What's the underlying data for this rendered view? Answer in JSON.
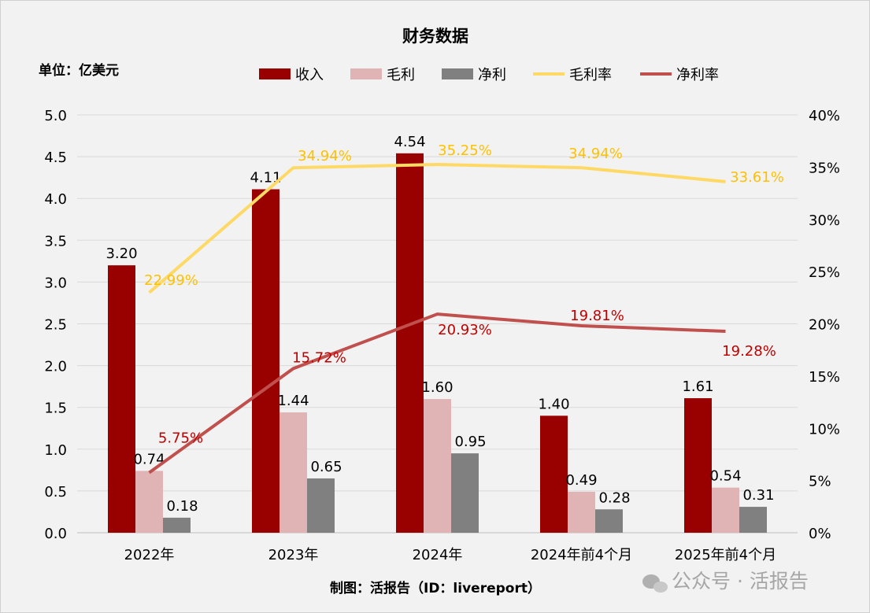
{
  "chart_data": {
    "type": "bar+line",
    "title": "财务数据",
    "unit_label": "单位：亿美元",
    "categories": [
      "2022年",
      "2023年",
      "2024年",
      "2024年前4个月",
      "2025年前4个月"
    ],
    "left_axis": {
      "ylim": [
        0,
        5
      ],
      "ticks": [
        "0.0",
        "0.5",
        "1.0",
        "1.5",
        "2.0",
        "2.5",
        "3.0",
        "3.5",
        "4.0",
        "4.5",
        "5.0"
      ]
    },
    "right_axis": {
      "ylim": [
        0,
        40
      ],
      "ticks": [
        "0%",
        "5%",
        "10%",
        "15%",
        "20%",
        "25%",
        "30%",
        "35%",
        "40%"
      ]
    },
    "grid": true,
    "legend": "top",
    "bar_series": [
      {
        "name": "收入",
        "values": [
          3.2,
          4.11,
          4.54,
          1.4,
          1.61
        ],
        "labels": [
          "3.20",
          "4.11",
          "4.54",
          "1.40",
          "1.61"
        ],
        "color": "#990000"
      },
      {
        "name": "毛利",
        "values": [
          0.74,
          1.44,
          1.6,
          0.49,
          0.54
        ],
        "labels": [
          "0.74",
          "1.44",
          "1.60",
          "0.49",
          "0.54"
        ],
        "color": "#e0b4b4"
      },
      {
        "name": "净利",
        "values": [
          0.18,
          0.65,
          0.95,
          0.28,
          0.31
        ],
        "labels": [
          "0.18",
          "0.65",
          "0.95",
          "0.28",
          "0.31"
        ],
        "color": "#808080"
      }
    ],
    "line_series": [
      {
        "name": "毛利率",
        "values": [
          22.99,
          34.94,
          35.25,
          34.94,
          33.61
        ],
        "labels": [
          "22.99%",
          "34.94%",
          "35.25%",
          "34.94%",
          "33.61%"
        ],
        "color": "#ffd966",
        "label_color": "#ffc000"
      },
      {
        "name": "净利率",
        "values": [
          5.75,
          15.72,
          20.93,
          19.81,
          19.28
        ],
        "labels": [
          "5.75%",
          "15.72%",
          "20.93%",
          "19.81%",
          "19.28%"
        ],
        "color": "#c0504d",
        "label_color": "#c00000"
      }
    ]
  },
  "footer": "制图：活报告（ID：livereport）",
  "watermark": "公众号 · 活报告"
}
